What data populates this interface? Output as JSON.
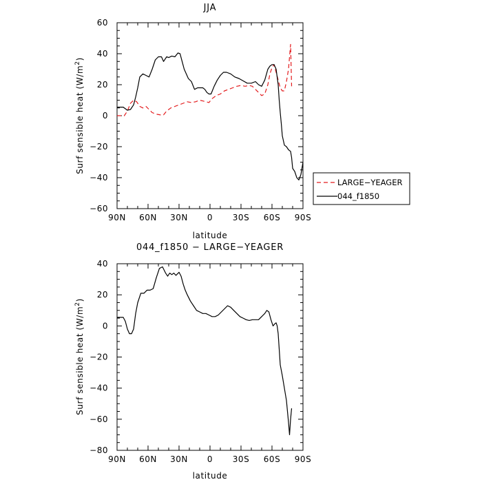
{
  "colors": {
    "large_yeager": "#e31a1c",
    "f1850": "#000000",
    "axis": "#000000"
  },
  "chart_data": [
    {
      "type": "line",
      "title": "JJA",
      "xlabel": "latitude",
      "ylabel": "Surf sensible heat (W/m²)",
      "ylabel_main": "Surf sensible heat (W/m",
      "ylabel_sup": "2",
      "ylabel_end": ")",
      "xlim": [
        90,
        -90
      ],
      "ylim": [
        -60,
        60
      ],
      "xticks": [
        90,
        60,
        30,
        0,
        -30,
        -60,
        -90
      ],
      "xtick_labels": [
        "90N",
        "60N",
        "30N",
        "0",
        "30S",
        "60S",
        "90S"
      ],
      "yticks": [
        -60,
        -40,
        -20,
        0,
        20,
        40,
        60
      ],
      "ytick_labels": [
        "−60",
        "−40",
        "−20",
        "0",
        "20",
        "40",
        "60"
      ],
      "legend": {
        "placement": "right",
        "entries": [
          "LARGE−YEAGER",
          "044_f1850"
        ]
      },
      "series": [
        {
          "name": "LARGE−YEAGER",
          "style": "dashed",
          "color": "#e31a1c",
          "x": [
            90,
            86,
            83,
            80,
            77,
            74,
            71,
            68,
            65,
            62,
            59,
            56,
            52,
            48,
            45,
            42,
            38,
            34,
            30,
            26,
            22,
            18,
            14,
            10,
            7,
            4,
            1,
            -2,
            -6,
            -10,
            -14,
            -18,
            -22,
            -26,
            -30,
            -34,
            -38,
            -41,
            -44,
            -47,
            -50,
            -53,
            -56,
            -58,
            -60,
            -62,
            -64,
            -66,
            -68,
            -70,
            -72,
            -74,
            -76,
            -77,
            -78,
            -79
          ],
          "y": [
            0,
            0,
            0,
            3,
            8,
            10,
            9,
            6,
            5,
            6,
            4,
            2,
            1,
            0.5,
            0.5,
            3,
            5,
            6,
            7,
            8,
            9,
            8.5,
            9,
            10,
            9.5,
            9,
            8.5,
            11,
            13,
            14,
            16,
            17,
            18,
            19,
            19.5,
            19,
            19.5,
            19,
            17,
            15,
            13,
            14,
            20,
            27,
            31,
            33,
            28,
            23,
            18,
            16,
            16,
            22,
            30,
            38,
            46,
            19
          ]
        },
        {
          "name": "044_f1850",
          "style": "solid",
          "color": "#000000",
          "x": [
            90,
            87,
            84,
            82,
            80,
            77,
            74,
            72,
            70,
            68,
            65,
            62,
            59,
            56,
            53,
            50,
            47,
            45,
            42,
            40,
            37,
            34,
            31,
            29,
            27,
            25,
            23,
            21,
            18,
            15,
            12,
            9,
            7,
            5,
            3,
            1,
            -1,
            -4,
            -7,
            -10,
            -13,
            -16,
            -20,
            -24,
            -28,
            -32,
            -36,
            -40,
            -44,
            -47,
            -50,
            -53,
            -56,
            -58,
            -60,
            -62,
            -64,
            -65,
            -66,
            -67,
            -68,
            -69,
            -70,
            -72,
            -74,
            -76,
            -78,
            -79,
            -80,
            -82,
            -84,
            -86,
            -88,
            -90
          ],
          "y": [
            5.5,
            5.5,
            5.5,
            4.5,
            3.5,
            4,
            7,
            12,
            18,
            25,
            27,
            26,
            25,
            30,
            36,
            38,
            38,
            35,
            38,
            37.5,
            38.5,
            38,
            40.5,
            40,
            35,
            30,
            27,
            24,
            22,
            17,
            18,
            18,
            18,
            17,
            15,
            14,
            14,
            19,
            23,
            26,
            28,
            28,
            27,
            25,
            24,
            22.5,
            21,
            21,
            22,
            20,
            19,
            23,
            30,
            32,
            33,
            33,
            30,
            25,
            20,
            10,
            2,
            -5,
            -13,
            -19,
            -20,
            -22,
            -23,
            -27,
            -34,
            -36,
            -40,
            -41.5,
            -38,
            -30
          ]
        }
      ]
    },
    {
      "type": "line",
      "title": "044_f1850 − LARGE−YEAGER",
      "xlabel": "latitude",
      "ylabel": "Surf sensible heat (W/m²)",
      "ylabel_main": "Surf sensible heat (W/m",
      "ylabel_sup": "2",
      "ylabel_end": ")",
      "xlim": [
        90,
        -90
      ],
      "ylim": [
        -80,
        40
      ],
      "xticks": [
        90,
        60,
        30,
        0,
        -30,
        -60,
        -90
      ],
      "xtick_labels": [
        "90N",
        "60N",
        "30N",
        "0",
        "30S",
        "60S",
        "90S"
      ],
      "yticks": [
        -80,
        -60,
        -40,
        -20,
        0,
        20,
        40
      ],
      "ytick_labels": [
        "−80",
        "−60",
        "−40",
        "−20",
        "0",
        "20",
        "40"
      ],
      "series": [
        {
          "style": "solid",
          "color": "#000000",
          "x": [
            90,
            87,
            84,
            82,
            80,
            78,
            76,
            74,
            72,
            70,
            67,
            64,
            61,
            58,
            55,
            52,
            49,
            46,
            43,
            41,
            39,
            37,
            35,
            33,
            30,
            28,
            26,
            24,
            22,
            19,
            16,
            13,
            10,
            7,
            4,
            1,
            -2,
            -5,
            -8,
            -11,
            -14,
            -17,
            -20,
            -23,
            -26,
            -29,
            -32,
            -35,
            -38,
            -41,
            -44,
            -47,
            -50,
            -53,
            -55,
            -57,
            -59,
            -61,
            -63,
            -64,
            -65,
            -66,
            -67,
            -68,
            -70,
            -72,
            -74,
            -76,
            -77,
            -78,
            -79
          ],
          "y": [
            5.5,
            5.5,
            5.5,
            3,
            -2,
            -5,
            -5,
            -2,
            8,
            15,
            21,
            21,
            23,
            23,
            24,
            31,
            37,
            38,
            34,
            32,
            34,
            33,
            34,
            32.5,
            34.5,
            32,
            27,
            23,
            20,
            16,
            13,
            10,
            9,
            8,
            8,
            7,
            6,
            6,
            7,
            9,
            11,
            13,
            12,
            10,
            8,
            6,
            5,
            4,
            3.5,
            4,
            4,
            4,
            6,
            8,
            10,
            9,
            4,
            0,
            1.5,
            2,
            0,
            -5,
            -15,
            -25,
            -32,
            -40,
            -48,
            -62,
            -70,
            -60,
            -53
          ]
        }
      ]
    }
  ]
}
